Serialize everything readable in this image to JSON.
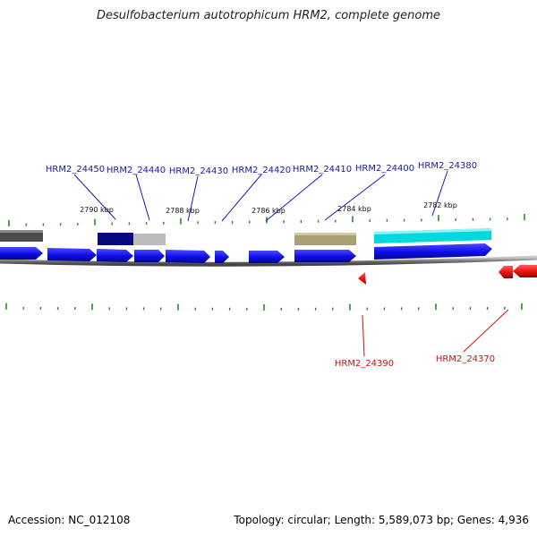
{
  "title": "Desulfobacterium autotrophicum HRM2, complete genome",
  "accession_text": "Accession: NC_012108",
  "summary_text": "Topology: circular; Length: 5,589,073 bp; Genes: 4,936",
  "colors": {
    "forward_gene": "#1010ee",
    "reverse_gene": "#ee1010",
    "forward_label": "#1a1aa8",
    "reverse_label": "#c81414",
    "tick": "#2a8a2a",
    "backbone": "#808080"
  },
  "scale_ticks": [
    {
      "label": "2790 kbp"
    },
    {
      "label": "2788 kbp"
    },
    {
      "label": "2786 kbp"
    },
    {
      "label": "2784 kbp"
    },
    {
      "label": "2782 kbp"
    }
  ],
  "forward_genes": [
    {
      "label": "HRM2_24450"
    },
    {
      "label": "HRM2_24440"
    },
    {
      "label": "HRM2_24430"
    },
    {
      "label": "HRM2_24420"
    },
    {
      "label": "HRM2_24410"
    },
    {
      "label": "HRM2_24400"
    },
    {
      "label": "HRM2_24380"
    }
  ],
  "reverse_genes": [
    {
      "label": "HRM2_24390"
    },
    {
      "label": "HRM2_24370"
    }
  ],
  "feature_colors": [
    "#4a4a4a",
    "#0a0a80",
    "#bcbcbc",
    "#a8a070",
    "#00d8e0"
  ]
}
